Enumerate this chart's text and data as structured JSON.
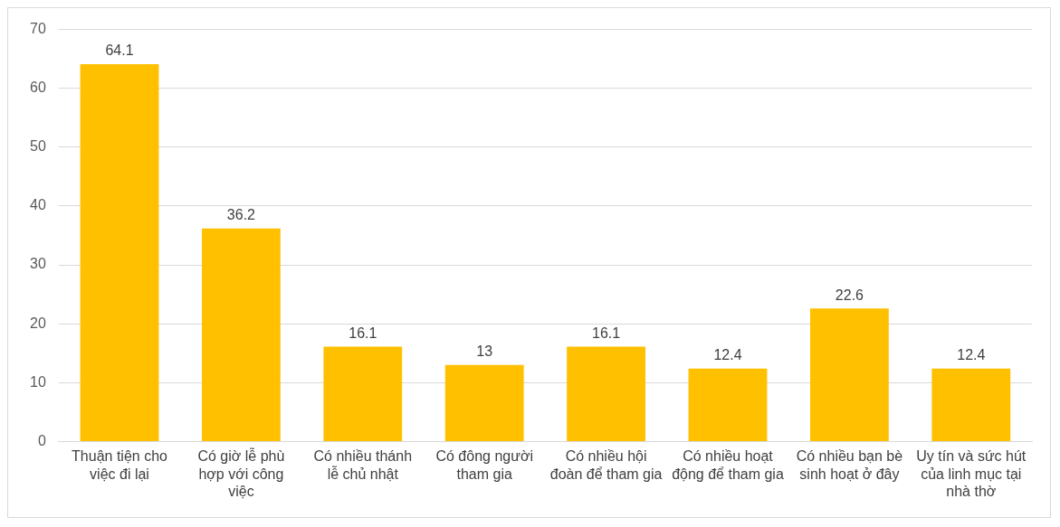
{
  "chart_data": {
    "type": "bar",
    "categories": [
      "Thuận tiện cho việc đi lại",
      "Có giờ lễ phù hợp với công việc",
      "Có nhiều thánh lễ chủ nhật",
      "Có đông người tham gia",
      "Có nhiều hội đoàn để tham gia",
      "Có nhiều hoạt động để tham gia",
      "Có nhiều bạn bè sinh hoạt ở đây",
      "Uy tín và sức hút của linh mục tại nhà thờ"
    ],
    "values": [
      64.1,
      36.2,
      16.1,
      13,
      16.1,
      12.4,
      22.6,
      12.4
    ],
    "color": "#ffc000",
    "ylim": [
      0,
      70
    ],
    "yticks": [
      0,
      10,
      20,
      30,
      40,
      50,
      60,
      70
    ],
    "grid": "y",
    "data_labels": true
  }
}
